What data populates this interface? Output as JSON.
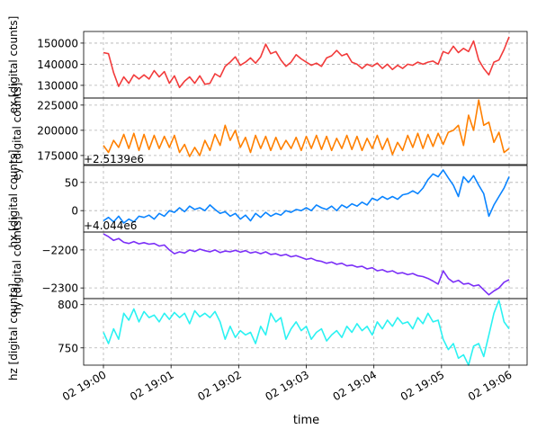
{
  "chart_data": {
    "type": "line",
    "xlabel": "time",
    "x_range": [
      "19:00",
      "19:06"
    ],
    "x_ticks": [
      "02 19:00",
      "02 19:01",
      "02 19:02",
      "02 19:03",
      "02 19:04",
      "02 19:05",
      "02 19:06"
    ],
    "grid": true,
    "panels": [
      {
        "name": "ex",
        "ylabel": "ex [digital counts]",
        "color": "#f23b3b",
        "ylim": [
          124000,
          155500
        ],
        "yticks": [
          130000,
          140000,
          150000
        ],
        "ytick_labels": [
          "130000",
          "140000",
          "150000"
        ],
        "offset_label": "",
        "values": [
          145500,
          145000,
          136000,
          129500,
          134000,
          131000,
          135000,
          133000,
          135000,
          133000,
          137000,
          134000,
          136500,
          131000,
          134500,
          129000,
          132000,
          134000,
          131000,
          134500,
          130500,
          131000,
          135500,
          134000,
          139000,
          141000,
          143500,
          139500,
          141000,
          143000,
          140500,
          143500,
          149500,
          145000,
          146000,
          142000,
          139000,
          141000,
          144500,
          142500,
          141000,
          139500,
          140500,
          139000,
          143000,
          144000,
          146500,
          144000,
          145000,
          141000,
          140000,
          138000,
          140000,
          139000,
          140500,
          138000,
          140000,
          137500,
          139500,
          138000,
          140000,
          139500,
          141000,
          140000,
          141000,
          141500,
          140000,
          146000,
          145000,
          148500,
          145500,
          147500,
          146000,
          151000,
          142000,
          138000,
          135000,
          141000,
          142000,
          147000,
          153000
        ]
      },
      {
        "name": "ey",
        "ylabel": "ey [digital counts]",
        "color": "#ff8000",
        "ylim": [
          166000,
          232000
        ],
        "yticks": [
          175000,
          200000,
          225000
        ],
        "ytick_labels": [
          "175000",
          "200000",
          "225000"
        ],
        "offset_label": "",
        "values": [
          185000,
          178000,
          190000,
          183000,
          196000,
          182000,
          197000,
          180000,
          196000,
          181000,
          195000,
          182000,
          194000,
          183000,
          195000,
          178000,
          186000,
          174000,
          183000,
          175000,
          190000,
          180000,
          196000,
          185000,
          205000,
          190000,
          200000,
          183000,
          193000,
          178000,
          195000,
          182000,
          194000,
          180000,
          193000,
          181000,
          190000,
          182000,
          193000,
          180000,
          194000,
          182000,
          195000,
          181000,
          194000,
          180000,
          192000,
          182000,
          195000,
          181000,
          194000,
          180000,
          192000,
          182000,
          195000,
          181000,
          192000,
          176000,
          188000,
          180000,
          195000,
          183000,
          197000,
          182000,
          196000,
          184000,
          197000,
          186000,
          198000,
          200000,
          205000,
          185000,
          215000,
          200000,
          230000,
          205000,
          208000,
          188000,
          198000,
          178000,
          182000
        ]
      },
      {
        "name": "hx",
        "ylabel": "hx [digital counts]",
        "color": "#0a84ff",
        "ylim": [
          -38,
          80
        ],
        "yticks": [
          0,
          50
        ],
        "ytick_labels": [
          "0",
          "50"
        ],
        "offset_label": "+2.5139e6",
        "values": [
          -18,
          -12,
          -20,
          -10,
          -22,
          -15,
          -20,
          -10,
          -12,
          -8,
          -15,
          -5,
          -10,
          0,
          -3,
          5,
          -2,
          8,
          2,
          5,
          0,
          10,
          2,
          -5,
          -2,
          -10,
          -5,
          -15,
          -8,
          -18,
          -5,
          -12,
          -3,
          -10,
          -5,
          -8,
          0,
          -3,
          2,
          0,
          5,
          0,
          10,
          5,
          2,
          8,
          0,
          10,
          5,
          12,
          8,
          15,
          10,
          22,
          18,
          25,
          20,
          25,
          20,
          28,
          30,
          35,
          30,
          40,
          55,
          65,
          60,
          72,
          58,
          45,
          25,
          60,
          50,
          62,
          45,
          30,
          -10,
          10,
          25,
          40,
          60
        ]
      },
      {
        "name": "hy",
        "ylabel": "hy [digital counts]",
        "color": "#7b2ff7",
        "ylim": [
          -2328,
          -2153
        ],
        "yticks": [
          -2300,
          -2200
        ],
        "ytick_labels": [
          "−2300",
          "−2200"
        ],
        "offset_label": "+4.044e6",
        "values": [
          -2158,
          -2165,
          -2175,
          -2170,
          -2180,
          -2183,
          -2178,
          -2184,
          -2181,
          -2185,
          -2183,
          -2190,
          -2187,
          -2200,
          -2210,
          -2205,
          -2208,
          -2200,
          -2204,
          -2198,
          -2202,
          -2205,
          -2200,
          -2207,
          -2203,
          -2205,
          -2201,
          -2206,
          -2202,
          -2208,
          -2205,
          -2210,
          -2205,
          -2212,
          -2210,
          -2215,
          -2212,
          -2218,
          -2215,
          -2220,
          -2225,
          -2222,
          -2228,
          -2230,
          -2235,
          -2232,
          -2238,
          -2235,
          -2242,
          -2240,
          -2245,
          -2243,
          -2250,
          -2247,
          -2255,
          -2252,
          -2258,
          -2255,
          -2262,
          -2260,
          -2265,
          -2262,
          -2268,
          -2270,
          -2275,
          -2282,
          -2290,
          -2255,
          -2275,
          -2285,
          -2280,
          -2290,
          -2288,
          -2295,
          -2292,
          -2305,
          -2318,
          -2308,
          -2300,
          -2285,
          -2278
        ]
      },
      {
        "name": "hz",
        "ylabel": "hz [digital counts]",
        "color": "#2bf2f2",
        "ylim": [
          730,
          807
        ],
        "yticks": [
          750,
          800
        ],
        "ytick_labels": [
          "750",
          "800"
        ],
        "offset_label": "",
        "values": [
          768,
          755,
          772,
          760,
          790,
          782,
          795,
          780,
          792,
          785,
          788,
          780,
          790,
          783,
          791,
          785,
          790,
          778,
          793,
          786,
          790,
          785,
          792,
          780,
          760,
          775,
          762,
          770,
          765,
          768,
          755,
          775,
          765,
          790,
          780,
          785,
          760,
          772,
          780,
          770,
          775,
          760,
          768,
          772,
          758,
          765,
          770,
          762,
          775,
          768,
          778,
          770,
          775,
          765,
          780,
          772,
          782,
          775,
          785,
          778,
          780,
          772,
          785,
          778,
          790,
          780,
          782,
          760,
          748,
          755,
          738,
          742,
          730,
          752,
          755,
          740,
          765,
          790,
          805,
          780,
          772
        ]
      }
    ]
  }
}
